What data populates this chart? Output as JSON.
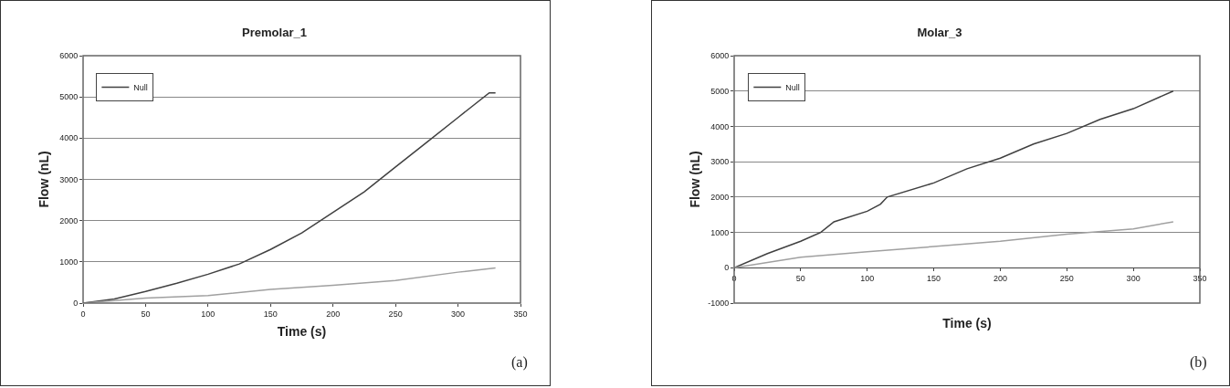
{
  "chart_data": [
    {
      "type": "line",
      "title": "Premolar_1",
      "xlabel": "Time (s)",
      "ylabel": "Flow (nL)",
      "xlim": [
        0,
        350
      ],
      "xticks": [
        0,
        50,
        100,
        150,
        200,
        250,
        300,
        350
      ],
      "ylim": [
        0,
        6000
      ],
      "yticks": [
        0,
        1000,
        2000,
        3000,
        4000,
        5000,
        6000
      ],
      "grid": "y",
      "legend": "top left",
      "annotations": [
        "(a)"
      ],
      "series": [
        {
          "name": "Null",
          "color": "#404040",
          "x": [
            0,
            25,
            50,
            75,
            100,
            125,
            150,
            175,
            200,
            225,
            250,
            275,
            300,
            325,
            330
          ],
          "values": [
            0,
            100,
            280,
            480,
            700,
            950,
            1300,
            1700,
            2200,
            2700,
            3300,
            3900,
            4500,
            5100,
            5100
          ]
        },
        {
          "color": "#a0a0a0",
          "x": [
            0,
            50,
            100,
            150,
            200,
            250,
            300,
            330
          ],
          "values": [
            0,
            120,
            180,
            330,
            430,
            550,
            750,
            850
          ]
        }
      ]
    },
    {
      "type": "line",
      "title": "Molar_3",
      "xlabel": "Time (s)",
      "ylabel": "Flow (nL)",
      "xlim": [
        0,
        350
      ],
      "xticks": [
        0,
        50,
        100,
        150,
        200,
        250,
        300,
        350
      ],
      "ylim": [
        -1000,
        6000
      ],
      "yticks": [
        -1000,
        0,
        1000,
        2000,
        3000,
        4000,
        5000,
        6000
      ],
      "grid": "y",
      "legend": "top left",
      "annotations": [
        "(b)"
      ],
      "series": [
        {
          "name": "Null",
          "color": "#404040",
          "x": [
            0,
            25,
            50,
            65,
            75,
            100,
            110,
            115,
            150,
            175,
            200,
            225,
            250,
            275,
            300,
            330
          ],
          "values": [
            0,
            400,
            750,
            1000,
            1300,
            1600,
            1800,
            2000,
            2400,
            2800,
            3100,
            3500,
            3800,
            4200,
            4500,
            5000
          ]
        },
        {
          "color": "#a0a0a0",
          "x": [
            0,
            50,
            100,
            150,
            200,
            250,
            300,
            330
          ],
          "values": [
            0,
            300,
            450,
            600,
            750,
            950,
            1100,
            1300
          ]
        }
      ]
    }
  ]
}
